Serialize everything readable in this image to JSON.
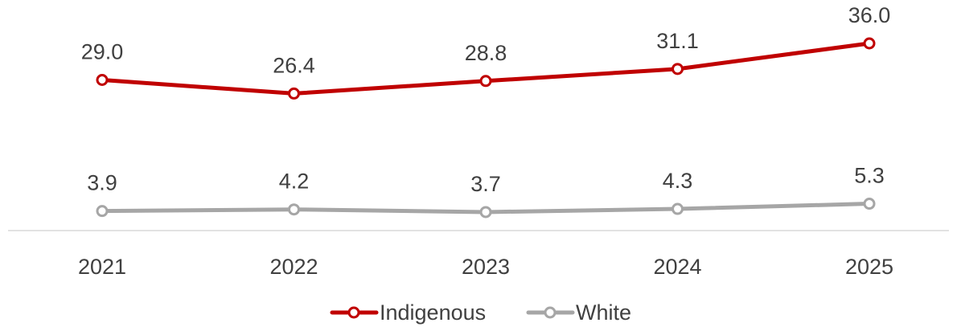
{
  "chart_data": {
    "type": "line",
    "title": "",
    "xlabel": "",
    "ylabel": "",
    "categories": [
      "2021",
      "2022",
      "2023",
      "2024",
      "2025"
    ],
    "ylim": [
      0,
      40
    ],
    "grid": false,
    "legend_position": "bottom",
    "series": [
      {
        "name": "Indigenous",
        "values": [
          29.0,
          26.4,
          28.8,
          31.1,
          36.0
        ],
        "labels": [
          "29.0",
          "26.4",
          "28.8",
          "31.1",
          "36.0"
        ],
        "color": "#C00000"
      },
      {
        "name": "White",
        "values": [
          3.9,
          4.2,
          3.7,
          4.3,
          5.3
        ],
        "labels": [
          "3.9",
          "4.2",
          "3.7",
          "4.3",
          "5.3"
        ],
        "color": "#A6A6A6"
      }
    ],
    "axis_color": "#D9D9D9"
  }
}
